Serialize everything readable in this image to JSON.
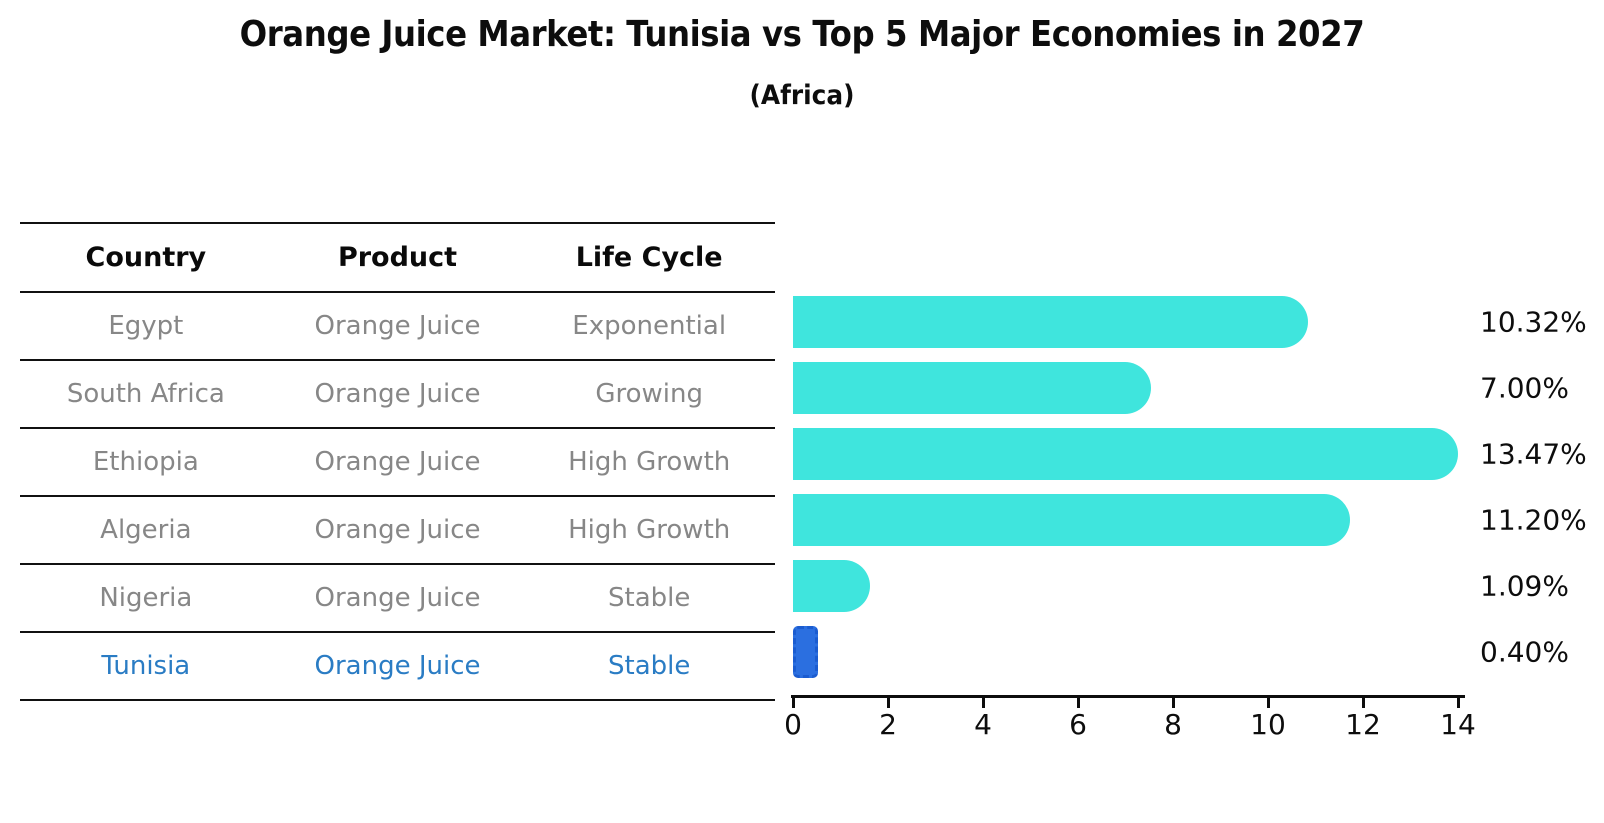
{
  "title": "Orange Juice Market: Tunisia vs Top 5 Major Economies in 2027",
  "subtitle": "(Africa)",
  "table": {
    "headers": [
      "Country",
      "Product",
      "Life Cycle"
    ],
    "rows": [
      {
        "country": "Egypt",
        "product": "Orange Juice",
        "life_cycle": "Exponential",
        "highlight": false
      },
      {
        "country": "South Africa",
        "product": "Orange Juice",
        "life_cycle": "Growing",
        "highlight": false
      },
      {
        "country": "Ethiopia",
        "product": "Orange Juice",
        "life_cycle": "High Growth",
        "highlight": false
      },
      {
        "country": "Algeria",
        "product": "Orange Juice",
        "life_cycle": "High Growth",
        "highlight": false
      },
      {
        "country": "Nigeria",
        "product": "Orange Juice",
        "life_cycle": "Stable",
        "highlight": false
      },
      {
        "country": "Tunisia",
        "product": "Orange Juice",
        "life_cycle": "Stable",
        "highlight": true
      }
    ]
  },
  "chart_data": {
    "type": "bar",
    "orientation": "horizontal",
    "title": "Orange Juice Market: Tunisia vs Top 5 Major Economies in 2027",
    "subtitle": "(Africa)",
    "categories": [
      "Egypt",
      "South Africa",
      "Ethiopia",
      "Algeria",
      "Nigeria",
      "Tunisia"
    ],
    "values": [
      10.32,
      7.0,
      13.47,
      11.2,
      1.09,
      0.4
    ],
    "value_labels": [
      "10.32%",
      "7.00%",
      "13.47%",
      "11.20%",
      "1.09%",
      "0.40%"
    ],
    "xlabel": "",
    "ylabel": "",
    "xlim": [
      0,
      14
    ],
    "x_ticks": [
      0,
      2,
      4,
      6,
      8,
      10,
      12,
      14
    ],
    "grid": false,
    "legend": false,
    "highlight_index": 5
  },
  "colors": {
    "bar": "#3fe5dd",
    "highlight_bar": "#2b6fe0",
    "highlight_bar_edge": "#1b5cd0",
    "highlight_text": "#2a7cc4",
    "row_text": "#878787",
    "header_text": "#0a0a0a",
    "axis": "#0d0d0d"
  }
}
